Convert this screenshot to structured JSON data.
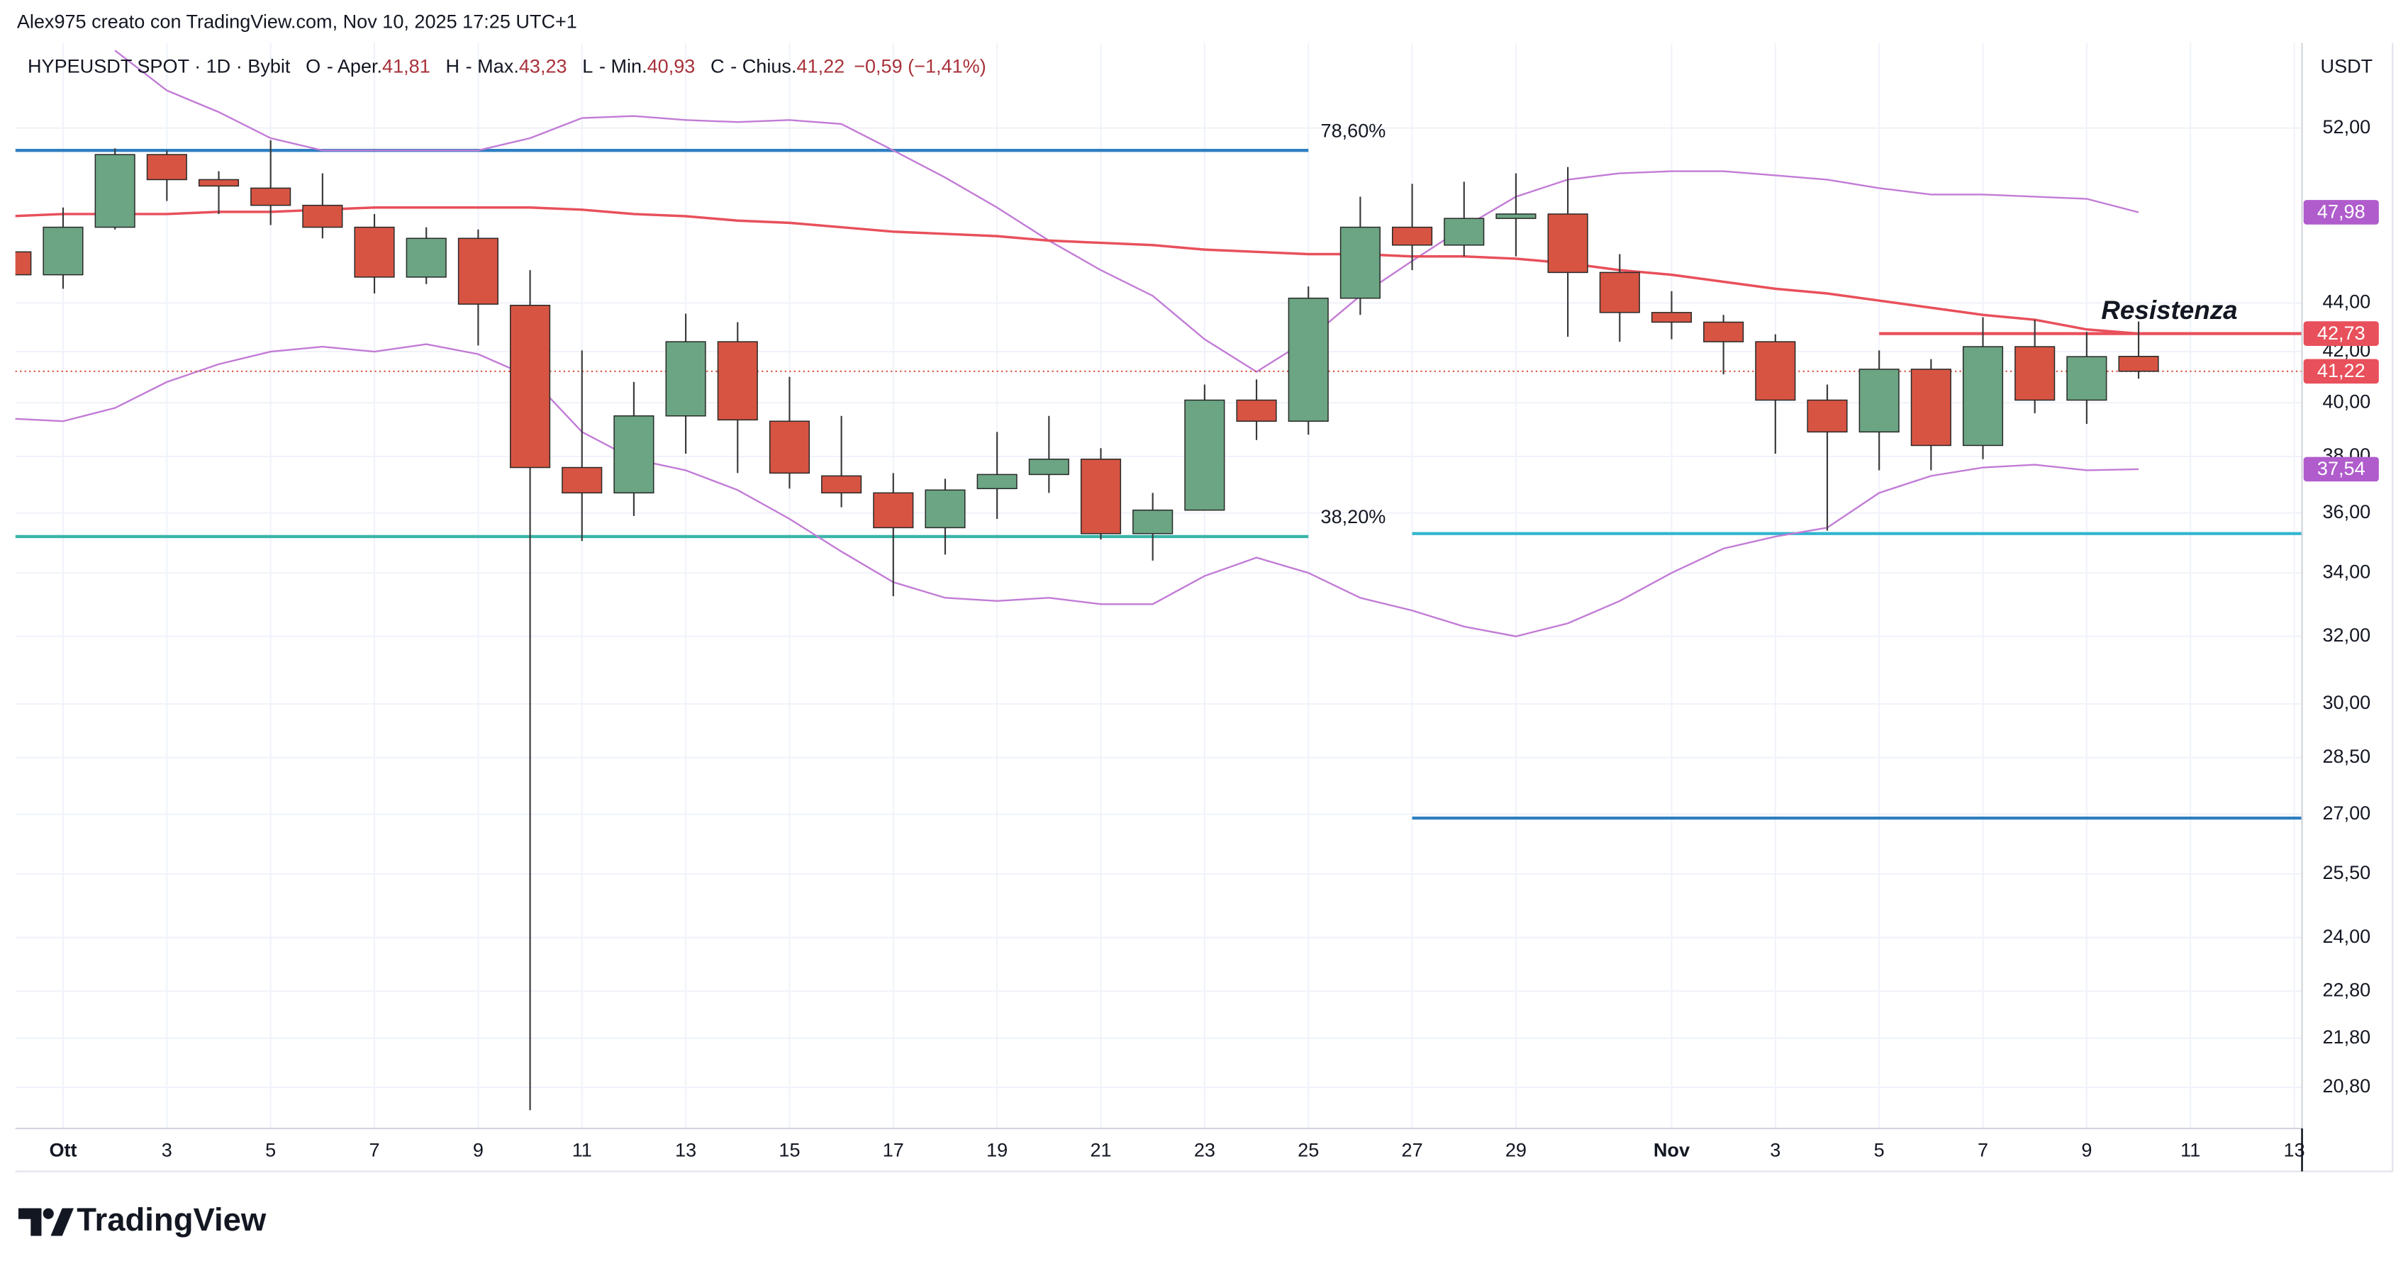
{
  "header": {
    "attribution": "Alex975 creato con TradingView.com, Nov 10, 2025 17:25 UTC+1"
  },
  "footer": {
    "brand": "TradingView"
  },
  "chart_data": {
    "type": "candlestick",
    "legend": {
      "symbol": "HYPEUSDT SPOT · 1D · Bybit",
      "fields": [
        {
          "key": "O",
          "name": "- Aper.",
          "value": "41,81"
        },
        {
          "key": "H",
          "name": "- Max.",
          "value": "43,23"
        },
        {
          "key": "L",
          "name": "- Min.",
          "value": "40,93"
        },
        {
          "key": "C",
          "name": "- Chius.",
          "value": "41,22"
        }
      ],
      "change": "−0,59 (−1,41%)"
    },
    "y_unit": "USDT",
    "x": [
      -1,
      0,
      1,
      2,
      3,
      4,
      5,
      6,
      7,
      8,
      9,
      10,
      11,
      12,
      13,
      14,
      15,
      16,
      17,
      18,
      19,
      20,
      21,
      22,
      23,
      24,
      25,
      26,
      27,
      28,
      29,
      30,
      31,
      32,
      33,
      34,
      35,
      36,
      37,
      38,
      39,
      40
    ],
    "open": [
      46.2,
      45.2,
      47.3,
      50.7,
      49.5,
      49.1,
      48.3,
      47.3,
      45.1,
      46.8,
      43.9,
      37.6,
      36.7,
      39.5,
      42.4,
      39.3,
      37.3,
      36.7,
      35.5,
      36.85,
      37.35,
      37.9,
      35.3,
      36.1,
      40.1,
      39.3,
      44.2,
      47.3,
      46.5,
      47.7,
      47.9,
      45.3,
      43.6,
      43.2,
      42.4,
      40.1,
      38.9,
      41.3,
      38.4,
      42.2,
      40.1,
      41.81
    ],
    "high": [
      46.5,
      48.2,
      51.0,
      50.9,
      49.9,
      51.4,
      49.8,
      47.9,
      47.3,
      47.2,
      45.4,
      42.05,
      40.8,
      43.55,
      43.2,
      41.0,
      39.5,
      37.4,
      37.2,
      38.9,
      39.5,
      38.3,
      36.7,
      40.7,
      40.9,
      44.7,
      48.7,
      49.3,
      49.4,
      49.8,
      50.1,
      46.1,
      44.5,
      43.5,
      42.7,
      40.7,
      42.05,
      41.7,
      43.4,
      43.3,
      42.8,
      43.23
    ],
    "low": [
      45.0,
      44.6,
      47.2,
      48.5,
      47.9,
      47.4,
      46.8,
      44.4,
      44.8,
      42.25,
      20.35,
      35.05,
      35.9,
      38.1,
      37.4,
      36.85,
      36.2,
      33.25,
      34.6,
      35.8,
      36.7,
      35.1,
      34.4,
      36.1,
      38.6,
      38.8,
      43.5,
      45.4,
      46.0,
      46.0,
      42.6,
      42.4,
      42.5,
      41.1,
      38.1,
      35.4,
      37.5,
      37.5,
      37.9,
      39.6,
      39.2,
      40.93
    ],
    "close": [
      45.2,
      47.3,
      50.7,
      49.5,
      49.2,
      48.3,
      47.3,
      45.1,
      46.8,
      43.95,
      37.6,
      36.7,
      39.5,
      42.4,
      39.35,
      37.4,
      36.7,
      35.5,
      36.8,
      37.35,
      37.9,
      35.3,
      36.1,
      40.1,
      39.3,
      44.2,
      47.3,
      46.5,
      47.7,
      47.9,
      45.3,
      43.6,
      43.2,
      42.4,
      40.1,
      38.9,
      41.3,
      38.4,
      42.2,
      40.1,
      41.8,
      41.22
    ],
    "up_color": "#6ba583",
    "down_color": "#d75442",
    "indicators": [
      {
        "color": "#c27bd6",
        "values": [
          null,
          null,
          56.0,
          53.9,
          52.8,
          51.5,
          50.9,
          50.9,
          50.9,
          50.9,
          51.5,
          52.5,
          52.6,
          52.4,
          52.3,
          52.4,
          52.2,
          50.9,
          49.6,
          48.2,
          46.7,
          45.4,
          44.3,
          42.5,
          41.2,
          42.5,
          44.3,
          45.8,
          47.3,
          48.7,
          49.5,
          49.8,
          49.9,
          49.9,
          49.7,
          49.5,
          49.1,
          48.8,
          48.8,
          48.7,
          48.6,
          47.98
        ]
      },
      {
        "color": "#e8505b",
        "values": [
          47.8,
          47.9,
          47.9,
          47.9,
          48.0,
          48.0,
          48.1,
          48.2,
          48.2,
          48.2,
          48.2,
          48.1,
          47.9,
          47.8,
          47.6,
          47.5,
          47.3,
          47.1,
          47.0,
          46.9,
          46.7,
          46.6,
          46.5,
          46.3,
          46.2,
          46.1,
          46.1,
          46.0,
          46.0,
          45.9,
          45.7,
          45.4,
          45.2,
          44.9,
          44.6,
          44.4,
          44.1,
          43.8,
          43.5,
          43.3,
          42.9,
          42.73
        ]
      },
      {
        "color": "#c27bd6",
        "values": [
          39.4,
          39.3,
          39.8,
          40.8,
          41.5,
          42.0,
          42.2,
          42.0,
          42.3,
          41.9,
          41.0,
          38.9,
          37.9,
          37.5,
          36.8,
          35.8,
          34.7,
          33.7,
          33.2,
          33.1,
          33.2,
          33.0,
          33.0,
          33.9,
          34.5,
          34.0,
          33.2,
          32.8,
          32.3,
          32.0,
          32.4,
          33.1,
          34.0,
          34.8,
          35.2,
          35.5,
          36.7,
          37.3,
          37.6,
          37.7,
          37.5,
          37.54
        ]
      }
    ],
    "levels": [
      {
        "value": 50.9,
        "from": -0.92,
        "to": 24.0,
        "color": "#2f7fc1",
        "label": "78,60%",
        "label_color": "#3a9fc8"
      },
      {
        "value": 35.2,
        "from": -0.92,
        "to": 24.0,
        "color": "#3bb5a9",
        "label": "38,20%",
        "label_color": "#3bb5a9"
      },
      {
        "value": 35.3,
        "from": 26.0,
        "to": 43.15,
        "color": "#33b5d0"
      },
      {
        "value": 26.9,
        "from": 26.0,
        "to": 43.15,
        "color": "#2f7fc1"
      },
      {
        "value": 42.73,
        "from": 35.0,
        "to": 43.15,
        "color": "#e8505b",
        "label": "Resistenza",
        "label_color": "#e8505b"
      }
    ],
    "price_tags": [
      {
        "value": 47.98,
        "label": "47,98",
        "color": "#b05ccc"
      },
      {
        "value": 42.73,
        "label": "42,73",
        "color": "#e8505b"
      },
      {
        "value": 41.22,
        "label": "41,22",
        "color": "#e8505b"
      },
      {
        "value": 37.54,
        "label": "37,54",
        "color": "#b05ccc"
      }
    ],
    "last_price_line": true,
    "xlim": [
      -0.92,
      43.15
    ],
    "xticks": [
      {
        "value": 0,
        "label": "Ott"
      },
      {
        "value": 2,
        "label": "3"
      },
      {
        "value": 4,
        "label": "5"
      },
      {
        "value": 6,
        "label": "7"
      },
      {
        "value": 8,
        "label": "9"
      },
      {
        "value": 10,
        "label": "11"
      },
      {
        "value": 12,
        "label": "13"
      },
      {
        "value": 14,
        "label": "15"
      },
      {
        "value": 16,
        "label": "17"
      },
      {
        "value": 18,
        "label": "19"
      },
      {
        "value": 20,
        "label": "21"
      },
      {
        "value": 22,
        "label": "23"
      },
      {
        "value": 24,
        "label": "25"
      },
      {
        "value": 26,
        "label": "27"
      },
      {
        "value": 28,
        "label": "29"
      },
      {
        "value": 31,
        "label": "Nov"
      },
      {
        "value": 33,
        "label": "3"
      },
      {
        "value": 35,
        "label": "5"
      },
      {
        "value": 37,
        "label": "7"
      },
      {
        "value": 39,
        "label": "9"
      },
      {
        "value": 41,
        "label": "11"
      },
      {
        "value": 43,
        "label": "13"
      }
    ],
    "ylim": [
      20.0,
      56.4
    ],
    "y_log": true,
    "yticks": [
      {
        "value": 52,
        "label": "52,00"
      },
      {
        "value": 44,
        "label": "44,00"
      },
      {
        "value": 42,
        "label": "42,00"
      },
      {
        "value": 40,
        "label": "40,00"
      },
      {
        "value": 38,
        "label": "38,00"
      },
      {
        "value": 36,
        "label": "36,00"
      },
      {
        "value": 34,
        "label": "34,00"
      },
      {
        "value": 32,
        "label": "32,00"
      },
      {
        "value": 30,
        "label": "30,00"
      },
      {
        "value": 28.5,
        "label": "28,50"
      },
      {
        "value": 27,
        "label": "27,00"
      },
      {
        "value": 25.5,
        "label": "25,50"
      },
      {
        "value": 24,
        "label": "24,00"
      },
      {
        "value": 22.8,
        "label": "22,80"
      },
      {
        "value": 21.8,
        "label": "21,80"
      },
      {
        "value": 20.8,
        "label": "20,80"
      }
    ],
    "grid": true
  }
}
